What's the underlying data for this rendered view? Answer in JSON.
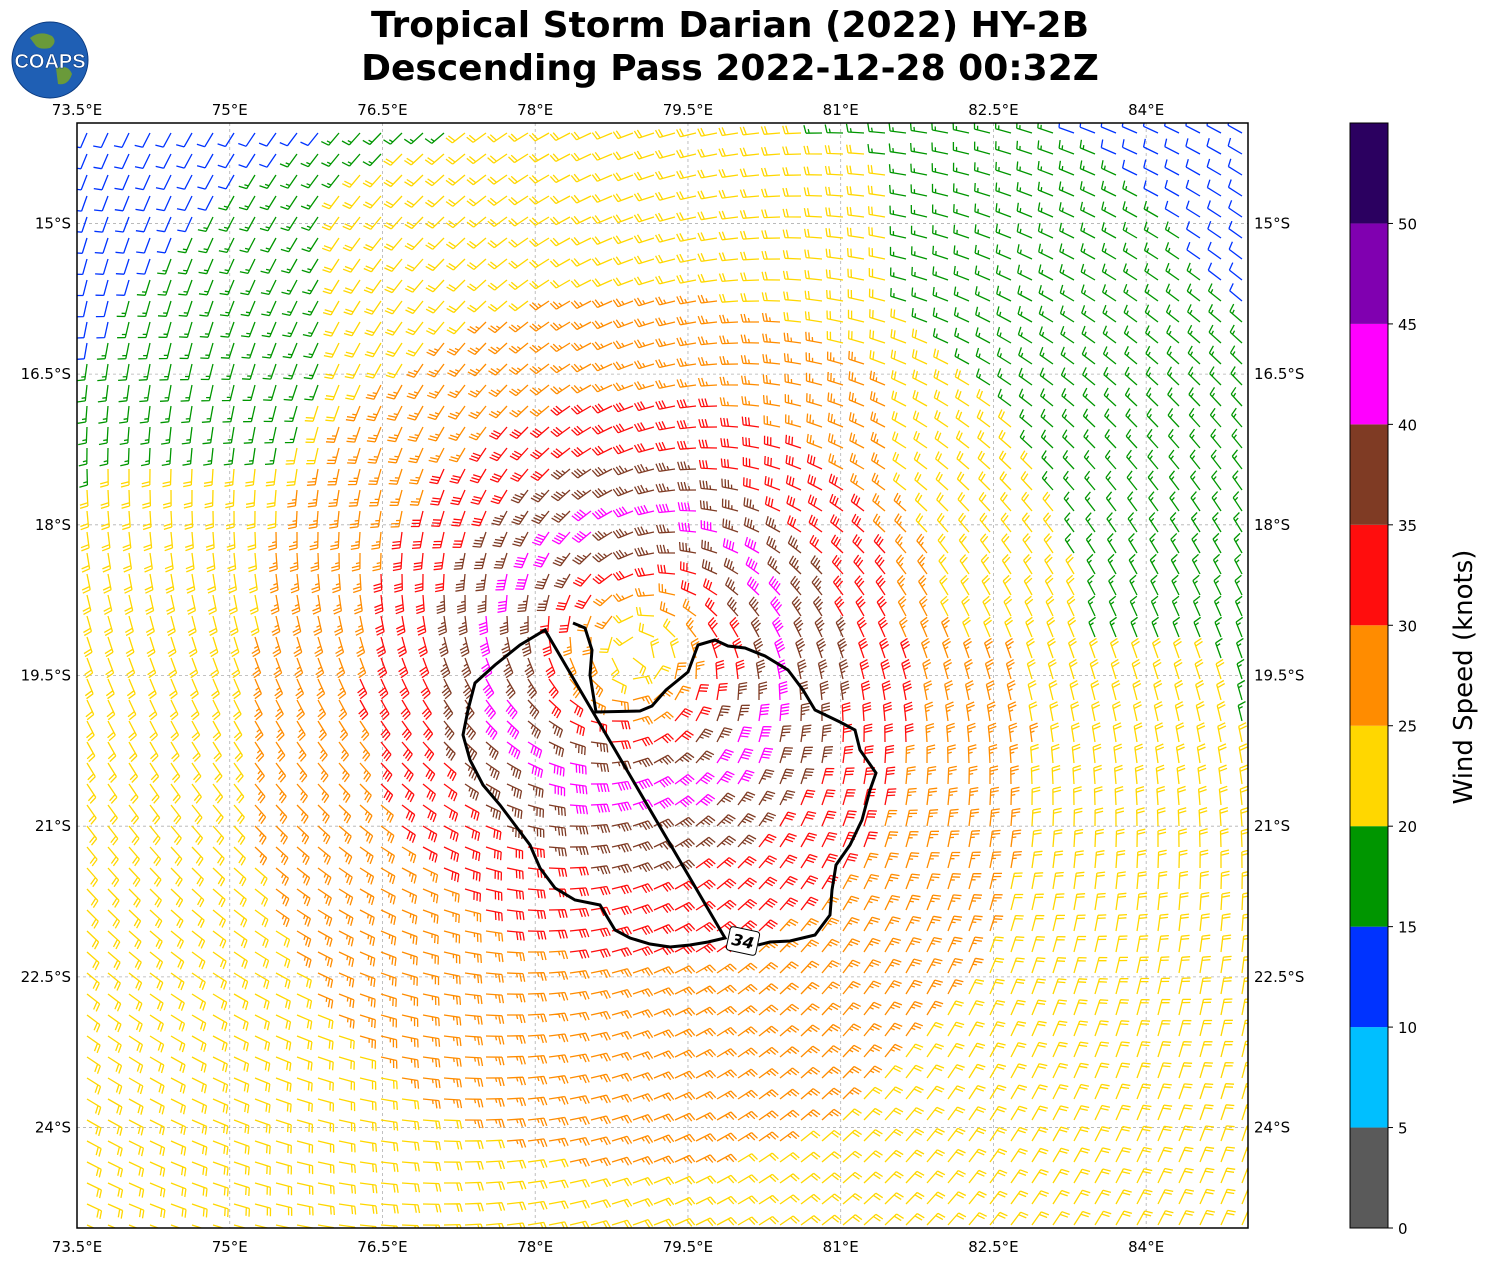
{
  "header": {
    "title_line1": "Tropical Storm Darian (2022) HY-2B",
    "title_line2": "Descending Pass 2022-12-28 00:32Z",
    "logo_text": "COAPS"
  },
  "map": {
    "lon_range": [
      73.5,
      85.0
    ],
    "lat_range": [
      -25.0,
      -14.0
    ],
    "lon_ticks": [
      "73.5°E",
      "75°E",
      "76.5°E",
      "78°E",
      "79.5°E",
      "81°E",
      "82.5°E",
      "84°E"
    ],
    "lat_ticks": [
      "15°S",
      "16.5°S",
      "18°S",
      "19.5°S",
      "21°S",
      "22.5°S",
      "24°S"
    ],
    "lon_tick_values": [
      73.5,
      75,
      76.5,
      78,
      79.5,
      81,
      82.5,
      84
    ],
    "lat_tick_values": [
      -15,
      -16.5,
      -18,
      -19.5,
      -21,
      -22.5,
      -24
    ],
    "grid": true,
    "storm_center": {
      "lon": 79.0,
      "lat": -19.3
    },
    "contour_label": "34",
    "contour_value_knots": 34
  },
  "colorbar": {
    "label": "Wind Speed (knots)",
    "ticks": [
      "0",
      "5",
      "10",
      "15",
      "20",
      "25",
      "30",
      "35",
      "40",
      "45",
      "50"
    ],
    "bins": [
      {
        "min": 0,
        "max": 5,
        "color": "#5a5a5a"
      },
      {
        "min": 5,
        "max": 10,
        "color": "#00bfff"
      },
      {
        "min": 10,
        "max": 15,
        "color": "#0033ff"
      },
      {
        "min": 15,
        "max": 20,
        "color": "#009600"
      },
      {
        "min": 20,
        "max": 25,
        "color": "#ffd700"
      },
      {
        "min": 25,
        "max": 30,
        "color": "#ff8c00"
      },
      {
        "min": 30,
        "max": 35,
        "color": "#ff0d0d"
      },
      {
        "min": 35,
        "max": 40,
        "color": "#7f3b24"
      },
      {
        "min": 40,
        "max": 45,
        "color": "#ff00ff"
      },
      {
        "min": 45,
        "max": 50,
        "color": "#8000b0"
      },
      {
        "min": 50,
        "max": 55,
        "color": "#2b0060"
      }
    ]
  }
}
